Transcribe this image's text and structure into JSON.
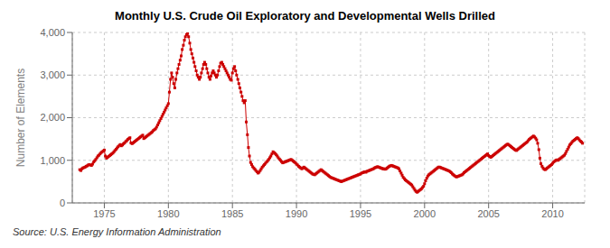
{
  "chart_data": {
    "type": "line",
    "title": "Monthly U.S. Crude Oil Exploratory and Developmental Wells Drilled",
    "ylabel": "Number of Elements",
    "annotations": [
      "Source: U.S. Energy Information Administration"
    ],
    "color": "#CC0000",
    "marker": "square",
    "grid": true,
    "xlim": [
      1972.5,
      2012.5
    ],
    "xticks": [
      1975,
      1980,
      1985,
      1990,
      1995,
      2000,
      2005,
      2010
    ],
    "ylim": [
      0,
      4000
    ],
    "yticks": [
      0,
      {
        "value": 1000,
        "label": "1,000"
      },
      {
        "value": 2000,
        "label": "2,000"
      },
      {
        "value": 3000,
        "label": "3,000"
      },
      {
        "value": 4000,
        "label": "4,000"
      }
    ],
    "x": [
      1973.08,
      1973.17,
      1973.25,
      1973.33,
      1973.42,
      1973.5,
      1973.58,
      1973.67,
      1973.75,
      1973.83,
      1973.92,
      1974.0,
      1974.08,
      1974.17,
      1974.25,
      1974.33,
      1974.42,
      1974.5,
      1974.58,
      1974.67,
      1974.75,
      1974.83,
      1974.92,
      1975.0,
      1975.08,
      1975.17,
      1975.25,
      1975.33,
      1975.42,
      1975.5,
      1975.58,
      1975.67,
      1975.75,
      1975.83,
      1975.92,
      1976.0,
      1976.08,
      1976.17,
      1976.25,
      1976.33,
      1976.42,
      1976.5,
      1976.58,
      1976.67,
      1976.75,
      1976.83,
      1976.92,
      1977.0,
      1977.08,
      1977.17,
      1977.25,
      1977.33,
      1977.42,
      1977.5,
      1977.58,
      1977.67,
      1977.75,
      1977.83,
      1977.92,
      1978.0,
      1978.08,
      1978.17,
      1978.25,
      1978.33,
      1978.42,
      1978.5,
      1978.58,
      1978.67,
      1978.75,
      1978.83,
      1978.92,
      1979.0,
      1979.08,
      1979.17,
      1979.25,
      1979.33,
      1979.42,
      1979.5,
      1979.58,
      1979.67,
      1979.75,
      1979.83,
      1979.92,
      1980.0,
      1980.08,
      1980.17,
      1980.25,
      1980.33,
      1980.42,
      1980.5,
      1980.58,
      1980.67,
      1980.75,
      1980.83,
      1980.92,
      1981.0,
      1981.08,
      1981.17,
      1981.25,
      1981.33,
      1981.42,
      1981.5,
      1981.58,
      1981.67,
      1981.75,
      1981.83,
      1981.92,
      1982.0,
      1982.08,
      1982.17,
      1982.25,
      1982.33,
      1982.42,
      1982.5,
      1982.58,
      1982.67,
      1982.75,
      1982.83,
      1982.92,
      1983.0,
      1983.08,
      1983.17,
      1983.25,
      1983.33,
      1983.42,
      1983.5,
      1983.58,
      1983.67,
      1983.75,
      1983.83,
      1983.92,
      1984.0,
      1984.08,
      1984.17,
      1984.25,
      1984.33,
      1984.42,
      1984.5,
      1984.58,
      1984.67,
      1984.75,
      1984.83,
      1984.92,
      1985.0,
      1985.08,
      1985.17,
      1985.25,
      1985.33,
      1985.42,
      1985.5,
      1985.58,
      1985.67,
      1985.75,
      1985.83,
      1985.92,
      1986.0,
      1986.08,
      1986.17,
      1986.25,
      1986.33,
      1986.42,
      1986.5,
      1986.58,
      1986.67,
      1986.75,
      1986.83,
      1986.92,
      1987.0,
      1987.08,
      1987.17,
      1987.25,
      1987.33,
      1987.42,
      1987.5,
      1987.58,
      1987.67,
      1987.75,
      1987.83,
      1987.92,
      1988.0,
      1988.08,
      1988.17,
      1988.25,
      1988.33,
      1988.42,
      1988.5,
      1988.58,
      1988.67,
      1988.75,
      1988.83,
      1988.92,
      1989.0,
      1989.08,
      1989.17,
      1989.25,
      1989.33,
      1989.42,
      1989.5,
      1989.58,
      1989.67,
      1989.75,
      1989.83,
      1989.92,
      1990.0,
      1990.08,
      1990.17,
      1990.25,
      1990.33,
      1990.42,
      1990.5,
      1990.58,
      1990.67,
      1990.75,
      1990.83,
      1990.92,
      1991.0,
      1991.08,
      1991.17,
      1991.25,
      1991.33,
      1991.42,
      1991.5,
      1991.58,
      1991.67,
      1991.75,
      1991.83,
      1991.92,
      1992.0,
      1992.08,
      1992.17,
      1992.25,
      1992.33,
      1992.42,
      1992.5,
      1992.58,
      1992.67,
      1992.75,
      1992.83,
      1992.92,
      1993.0,
      1993.08,
      1993.17,
      1993.25,
      1993.33,
      1993.42,
      1993.5,
      1993.58,
      1993.67,
      1993.75,
      1993.83,
      1993.92,
      1994.0,
      1994.08,
      1994.17,
      1994.25,
      1994.33,
      1994.42,
      1994.5,
      1994.58,
      1994.67,
      1994.75,
      1994.83,
      1994.92,
      1995.0,
      1995.08,
      1995.17,
      1995.25,
      1995.33,
      1995.42,
      1995.5,
      1995.58,
      1995.67,
      1995.75,
      1995.83,
      1995.92,
      1996.0,
      1996.08,
      1996.17,
      1996.25,
      1996.33,
      1996.42,
      1996.5,
      1996.58,
      1996.67,
      1996.75,
      1996.83,
      1996.92,
      1997.0,
      1997.08,
      1997.17,
      1997.25,
      1997.33,
      1997.42,
      1997.5,
      1997.58,
      1997.67,
      1997.75,
      1997.83,
      1997.92,
      1998.0,
      1998.08,
      1998.17,
      1998.25,
      1998.33,
      1998.42,
      1998.5,
      1998.58,
      1998.67,
      1998.75,
      1998.83,
      1998.92,
      1999.0,
      1999.08,
      1999.17,
      1999.25,
      1999.33,
      1999.42,
      1999.5,
      1999.58,
      1999.67,
      1999.75,
      1999.83,
      1999.92,
      2000.0,
      2000.08,
      2000.17,
      2000.25,
      2000.33,
      2000.42,
      2000.5,
      2000.58,
      2000.67,
      2000.75,
      2000.83,
      2000.92,
      2001.0,
      2001.08,
      2001.17,
      2001.25,
      2001.33,
      2001.42,
      2001.5,
      2001.58,
      2001.67,
      2001.75,
      2001.83,
      2001.92,
      2002.0,
      2002.08,
      2002.17,
      2002.25,
      2002.33,
      2002.42,
      2002.5,
      2002.58,
      2002.67,
      2002.75,
      2002.83,
      2002.92,
      2003.0,
      2003.08,
      2003.17,
      2003.25,
      2003.33,
      2003.42,
      2003.5,
      2003.58,
      2003.67,
      2003.75,
      2003.83,
      2003.92,
      2004.0,
      2004.08,
      2004.17,
      2004.25,
      2004.33,
      2004.42,
      2004.5,
      2004.58,
      2004.67,
      2004.75,
      2004.83,
      2004.92,
      2005.0,
      2005.08,
      2005.17,
      2005.25,
      2005.33,
      2005.42,
      2005.5,
      2005.58,
      2005.67,
      2005.75,
      2005.83,
      2005.92,
      2006.0,
      2006.08,
      2006.17,
      2006.25,
      2006.33,
      2006.42,
      2006.5,
      2006.58,
      2006.67,
      2006.75,
      2006.83,
      2006.92,
      2007.0,
      2007.08,
      2007.17,
      2007.25,
      2007.33,
      2007.42,
      2007.5,
      2007.58,
      2007.67,
      2007.75,
      2007.83,
      2007.92,
      2008.0,
      2008.08,
      2008.17,
      2008.25,
      2008.33,
      2008.42,
      2008.5,
      2008.58,
      2008.67,
      2008.75,
      2008.83,
      2008.92,
      2009.0,
      2009.08,
      2009.17,
      2009.25,
      2009.33,
      2009.42,
      2009.5,
      2009.58,
      2009.67,
      2009.75,
      2009.83,
      2009.92,
      2010.0,
      2010.08,
      2010.17,
      2010.25,
      2010.33,
      2010.42,
      2010.5,
      2010.58,
      2010.67,
      2010.75,
      2010.83,
      2010.92,
      2011.0,
      2011.08,
      2011.17,
      2011.25,
      2011.33,
      2011.42,
      2011.5,
      2011.58,
      2011.67,
      2011.75,
      2011.83,
      2011.92,
      2012.0,
      2012.08,
      2012.17,
      2012.25,
      2012.33
    ],
    "values": [
      780,
      760,
      800,
      820,
      830,
      840,
      860,
      870,
      890,
      900,
      890,
      880,
      910,
      960,
      990,
      1020,
      1060,
      1100,
      1120,
      1150,
      1180,
      1200,
      1220,
      1240,
      1100,
      1050,
      1070,
      1090,
      1110,
      1130,
      1150,
      1170,
      1200,
      1230,
      1260,
      1290,
      1320,
      1350,
      1370,
      1340,
      1360,
      1390,
      1410,
      1440,
      1460,
      1490,
      1510,
      1530,
      1410,
      1390,
      1410,
      1430,
      1450,
      1470,
      1490,
      1510,
      1530,
      1550,
      1570,
      1590,
      1510,
      1530,
      1550,
      1570,
      1590,
      1610,
      1630,
      1650,
      1670,
      1700,
      1720,
      1740,
      1780,
      1830,
      1880,
      1930,
      1980,
      2030,
      2080,
      2130,
      2180,
      2230,
      2280,
      2330,
      2600,
      2900,
      3050,
      2950,
      2800,
      2700,
      2900,
      3050,
      3150,
      3250,
      3350,
      3450,
      3600,
      3700,
      3820,
      3900,
      3950,
      3980,
      3900,
      3750,
      3600,
      3500,
      3400,
      3300,
      3200,
      3100,
      3000,
      2950,
      2900,
      2950,
      3050,
      3150,
      3250,
      3300,
      3250,
      3150,
      3050,
      2950,
      2900,
      2980,
      3050,
      3100,
      3050,
      3000,
      2950,
      3000,
      3100,
      3200,
      3280,
      3300,
      3250,
      3200,
      3150,
      3100,
      3050,
      3000,
      2950,
      2900,
      2880,
      3050,
      3150,
      3200,
      3100,
      3000,
      2900,
      2800,
      2700,
      2600,
      2500,
      2400,
      2350,
      2400,
      1900,
      1600,
      1300,
      1100,
      950,
      900,
      850,
      820,
      790,
      760,
      730,
      700,
      720,
      760,
      800,
      840,
      870,
      900,
      930,
      960,
      990,
      1020,
      1060,
      1100,
      1150,
      1200,
      1180,
      1160,
      1130,
      1100,
      1060,
      1030,
      1000,
      970,
      940,
      950,
      960,
      970,
      980,
      990,
      1000,
      1010,
      1020,
      1000,
      980,
      960,
      940,
      910,
      890,
      860,
      840,
      820,
      800,
      820,
      840,
      820,
      800,
      780,
      760,
      740,
      720,
      700,
      680,
      670,
      660,
      680,
      700,
      720,
      740,
      760,
      780,
      760,
      740,
      720,
      700,
      680,
      660,
      640,
      620,
      600,
      590,
      580,
      570,
      560,
      550,
      540,
      530,
      520,
      510,
      500,
      510,
      520,
      530,
      540,
      550,
      560,
      570,
      580,
      590,
      600,
      610,
      620,
      630,
      640,
      650,
      660,
      670,
      680,
      700,
      710,
      720,
      730,
      720,
      740,
      750,
      760,
      770,
      780,
      790,
      800,
      820,
      830,
      840,
      850,
      840,
      830,
      820,
      810,
      800,
      800,
      790,
      800,
      820,
      840,
      860,
      870,
      880,
      870,
      860,
      850,
      840,
      830,
      820,
      800,
      750,
      700,
      650,
      600,
      570,
      540,
      520,
      500,
      480,
      460,
      440,
      420,
      380,
      340,
      300,
      270,
      250,
      270,
      290,
      310,
      330,
      360,
      390,
      450,
      520,
      580,
      630,
      660,
      680,
      700,
      720,
      740,
      760,
      780,
      800,
      820,
      840,
      840,
      830,
      820,
      810,
      800,
      790,
      780,
      770,
      760,
      750,
      730,
      710,
      680,
      660,
      640,
      620,
      610,
      620,
      630,
      640,
      650,
      660,
      680,
      710,
      730,
      750,
      770,
      790,
      810,
      830,
      850,
      870,
      890,
      910,
      930,
      950,
      970,
      990,
      1010,
      1030,
      1050,
      1070,
      1090,
      1110,
      1130,
      1150,
      1110,
      1090,
      1070,
      1090,
      1110,
      1130,
      1150,
      1170,
      1190,
      1210,
      1230,
      1250,
      1270,
      1290,
      1310,
      1330,
      1350,
      1370,
      1380,
      1360,
      1340,
      1320,
      1300,
      1280,
      1260,
      1240,
      1230,
      1250,
      1270,
      1290,
      1310,
      1330,
      1350,
      1370,
      1390,
      1410,
      1430,
      1460,
      1490,
      1510,
      1530,
      1550,
      1570,
      1550,
      1520,
      1480,
      1400,
      1250,
      1050,
      920,
      860,
      820,
      790,
      780,
      800,
      820,
      840,
      860,
      880,
      900,
      930,
      960,
      980,
      1000,
      1010,
      1000,
      1020,
      1040,
      1060,
      1080,
      1100,
      1120,
      1160,
      1210,
      1260,
      1310,
      1360,
      1390,
      1420,
      1450,
      1470,
      1490,
      1510,
      1530,
      1510,
      1480,
      1450,
      1430,
      1400
    ]
  }
}
